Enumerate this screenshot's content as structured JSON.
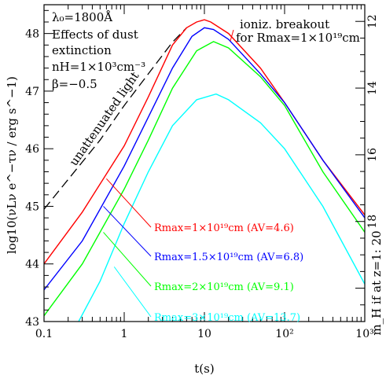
{
  "chart_data": {
    "type": "line",
    "title": "",
    "xlabel": "t(s)",
    "ylabel": "log10(νLν e^−τν / erg s^−1)",
    "ylabel_right": "m_H if at z=1: 20",
    "x_scale": "log",
    "xlim": [
      0.1,
      1000
    ],
    "ylim": [
      43,
      48.5
    ],
    "y2lim": [
      11.5,
      21.0
    ],
    "x_ticks": [
      {
        "value": 0.1,
        "label": "0.1"
      },
      {
        "value": 1,
        "label": "1"
      },
      {
        "value": 10,
        "label": "10"
      },
      {
        "value": 100,
        "label": "10²"
      },
      {
        "value": 1000,
        "label": "10³"
      }
    ],
    "y_ticks": [
      43,
      44,
      45,
      46,
      47,
      48
    ],
    "y2_ticks": [
      12,
      14,
      16,
      18,
      20
    ],
    "grid": false,
    "annotations": {
      "params": [
        "λ₀=1800Å",
        "Effects of dust",
        "extinction",
        "nH=1×10³cm⁻³",
        "β=−0.5"
      ],
      "unattenuated": "unattenuated light",
      "breakout_line1": "ioniz. breakout",
      "breakout_line2": "for Rmax=1×10¹⁹cm"
    },
    "series": [
      {
        "name": "",
        "label": "unattenuated light",
        "color": "#000000",
        "dashed": true,
        "x": [
          0.1,
          0.5,
          1,
          2,
          4,
          6
        ],
        "y": [
          44.95,
          46.15,
          46.75,
          47.3,
          47.85,
          48.1
        ]
      },
      {
        "name": "Rmax=1×10¹⁹cm (AV=4.6)",
        "color": "#ff0000",
        "x": [
          0.1,
          0.3,
          1,
          2,
          4,
          6,
          8,
          10,
          12,
          20,
          50,
          100,
          300,
          1000
        ],
        "y": [
          44.0,
          44.9,
          46.05,
          46.9,
          47.8,
          48.1,
          48.2,
          48.24,
          48.2,
          48.0,
          47.4,
          46.8,
          45.8,
          44.85
        ]
      },
      {
        "name": "Rmax=1.5×10¹⁹cm (AV=6.8)",
        "color": "#0000ff",
        "x": [
          0.1,
          0.3,
          1,
          2,
          4,
          7,
          10,
          13,
          20,
          50,
          100,
          300,
          1000
        ],
        "y": [
          43.55,
          44.4,
          45.7,
          46.55,
          47.4,
          47.95,
          48.1,
          48.07,
          47.9,
          47.3,
          46.8,
          45.8,
          44.8
        ]
      },
      {
        "name": "Rmax=2×10¹⁹cm (AV=9.1)",
        "color": "#00ff00",
        "x": [
          0.1,
          0.3,
          1,
          2,
          4,
          8,
          13,
          20,
          50,
          100,
          300,
          1000
        ],
        "y": [
          43.1,
          44.0,
          45.3,
          46.15,
          47.05,
          47.7,
          47.86,
          47.75,
          47.25,
          46.75,
          45.6,
          44.55
        ]
      },
      {
        "name": "Rmax=3×10¹⁹cm (AV=13.7)",
        "color": "#00ffff",
        "x": [
          0.27,
          0.5,
          1,
          2,
          4,
          8,
          14,
          20,
          50,
          100,
          300,
          1000
        ],
        "y": [
          43.0,
          43.7,
          44.7,
          45.6,
          46.4,
          46.85,
          46.95,
          46.85,
          46.45,
          46.0,
          45.0,
          43.65
        ]
      }
    ],
    "series_labels": [
      {
        "text": "Rmax=1×10¹⁹cm (AV=4.6)",
        "color": "#ff0000",
        "x": 0.6,
        "y": 45.48
      },
      {
        "text": "Rmax=1.5×10¹⁹cm (AV=6.8)",
        "color": "#0000ff",
        "x": 0.55,
        "y": 45.0
      },
      {
        "text": "Rmax=2×10¹⁹cm (AV=9.1)",
        "color": "#00ff00",
        "x": 0.55,
        "y": 44.55
      },
      {
        "text": "Rmax=3×10¹⁹cm (AV=13.7)",
        "color": "#00ffff",
        "x": 0.75,
        "y": 43.95
      }
    ]
  }
}
